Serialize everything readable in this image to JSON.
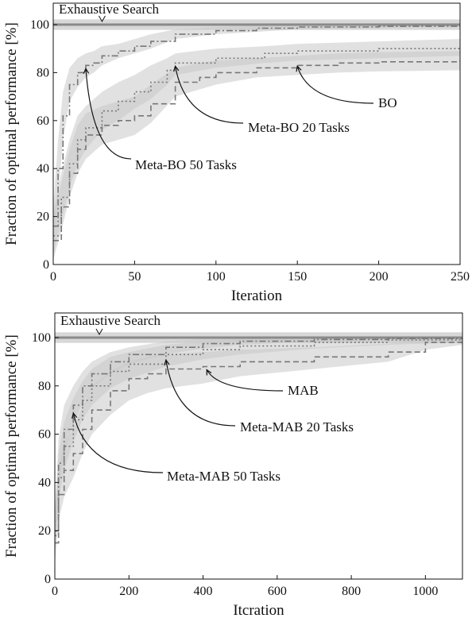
{
  "colors": {
    "exhaustive": "#8a8a8a",
    "band": "#c8c8c8",
    "series_line": "#777777",
    "text": "#111111",
    "axis": "#111111"
  },
  "chart_data": [
    {
      "type": "line",
      "xlabel": "Iteration",
      "ylabel": "Fraction of optimal performance [%]",
      "xlim": [
        0,
        250
      ],
      "ylim": [
        0,
        110
      ],
      "xticks": [
        0,
        50,
        100,
        150,
        200,
        250
      ],
      "yticks": [
        0,
        20,
        40,
        60,
        80,
        100
      ],
      "reference": {
        "name": "Exhaustive Search",
        "value": 100
      },
      "series": [
        {
          "name": "Meta-BO 50 Tasks",
          "dash": "dashdot",
          "x": [
            0,
            3,
            6,
            10,
            15,
            20,
            25,
            30,
            40,
            50,
            60,
            75,
            100,
            125,
            150,
            200,
            250
          ],
          "y": [
            16,
            40,
            62,
            75,
            80,
            83,
            84,
            87,
            89,
            91,
            93,
            96,
            97.5,
            98.5,
            99,
            99.3,
            99.5
          ],
          "lower": [
            8,
            28,
            52,
            68,
            74,
            78,
            80,
            83,
            86,
            88,
            90,
            94,
            96,
            97,
            98,
            98.6,
            99
          ],
          "upper": [
            24,
            52,
            72,
            82,
            86,
            88,
            89,
            91,
            92,
            94,
            96,
            98,
            99,
            99.6,
            99.8,
            100,
            100
          ]
        },
        {
          "name": "Meta-BO 20 Tasks",
          "dash": "dotted",
          "x": [
            0,
            5,
            10,
            15,
            20,
            30,
            40,
            50,
            60,
            70,
            75,
            100,
            130,
            150,
            200,
            250
          ],
          "y": [
            12,
            28,
            42,
            52,
            57,
            64,
            68,
            72,
            76,
            81,
            84,
            86,
            88,
            89,
            90,
            91
          ],
          "lower": [
            4,
            18,
            32,
            42,
            48,
            56,
            60,
            65,
            69,
            75,
            79,
            82,
            84,
            85,
            86,
            87
          ],
          "upper": [
            22,
            38,
            52,
            62,
            66,
            72,
            76,
            79,
            83,
            86,
            88,
            90,
            91,
            92,
            93,
            94
          ]
        },
        {
          "name": "BO",
          "dash": "dashed",
          "x": [
            0,
            5,
            10,
            15,
            20,
            30,
            40,
            50,
            60,
            75,
            90,
            100,
            125,
            150,
            175,
            200,
            250
          ],
          "y": [
            10,
            24,
            38,
            48,
            54,
            58,
            60,
            62,
            67,
            76,
            78,
            80,
            82,
            83,
            84,
            84.5,
            85
          ],
          "lower": [
            2,
            14,
            28,
            38,
            44,
            50,
            52,
            54,
            59,
            70,
            73,
            75,
            78,
            79,
            80,
            80.5,
            81
          ],
          "upper": [
            20,
            34,
            48,
            58,
            63,
            66,
            68,
            70,
            75,
            82,
            84,
            85,
            86,
            87,
            88,
            88.5,
            89
          ]
        }
      ],
      "annotations": [
        {
          "text": "Exhaustive Search",
          "target": [
            30,
            100
          ]
        },
        {
          "text": "BO",
          "target": [
            150,
            84
          ]
        },
        {
          "text": "Meta-BO 20 Tasks",
          "target": [
            75,
            84
          ]
        },
        {
          "text": "Meta-BO 50 Tasks",
          "target": [
            20,
            83
          ]
        }
      ]
    },
    {
      "type": "line",
      "xlabel": "Itcration",
      "ylabel": "Fraction of optimal performance [%]",
      "xlim": [
        0,
        1100
      ],
      "ylim": [
        0,
        110
      ],
      "xticks": [
        0,
        200,
        400,
        600,
        800,
        1000
      ],
      "yticks": [
        0,
        20,
        40,
        60,
        80,
        100
      ],
      "reference": {
        "name": "Exhaustive Search",
        "value": 100
      },
      "series": [
        {
          "name": "Meta-MAB 50 Tasks",
          "dash": "dashdot",
          "x": [
            0,
            10,
            25,
            50,
            75,
            100,
            150,
            200,
            300,
            400,
            500,
            700,
            900,
            1100
          ],
          "y": [
            20,
            48,
            62,
            72,
            80,
            85,
            90,
            93,
            96,
            97.5,
            98.5,
            99.2,
            99.6,
            100
          ],
          "lower": [
            12,
            38,
            52,
            64,
            73,
            79,
            85,
            89,
            93,
            95.5,
            97,
            98.3,
            99,
            99.5
          ],
          "upper": [
            28,
            58,
            72,
            80,
            86,
            90,
            94,
            96,
            98.5,
            99.5,
            100,
            100,
            100,
            100
          ]
        },
        {
          "name": "Meta-MAB 20 Tasks",
          "dash": "dotted",
          "x": [
            0,
            10,
            25,
            50,
            75,
            100,
            150,
            200,
            300,
            400,
            500,
            700,
            900,
            1100
          ],
          "y": [
            18,
            42,
            55,
            66,
            74,
            80,
            86,
            89,
            93,
            95,
            96.5,
            98,
            99,
            99.5
          ],
          "lower": [
            10,
            32,
            45,
            57,
            66,
            72,
            79,
            83,
            88,
            91,
            93,
            95.5,
            97,
            98
          ],
          "upper": [
            26,
            52,
            65,
            75,
            82,
            87,
            92,
            94,
            97,
            98.5,
            99.5,
            100,
            100,
            100
          ]
        },
        {
          "name": "MAB",
          "dash": "dashed",
          "x": [
            0,
            10,
            25,
            50,
            75,
            100,
            150,
            200,
            250,
            300,
            400,
            500,
            700,
            900,
            1000,
            1100
          ],
          "y": [
            15,
            35,
            45,
            52,
            62,
            70,
            78,
            83,
            85,
            87,
            88,
            90,
            92,
            94,
            98,
            99
          ],
          "lower": [
            6,
            24,
            34,
            42,
            52,
            60,
            68,
            74,
            77,
            79,
            81,
            84,
            87,
            90,
            95,
            97
          ],
          "upper": [
            24,
            46,
            56,
            62,
            72,
            80,
            86,
            90,
            92,
            93,
            94,
            95,
            96,
            97.5,
            100,
            100
          ]
        }
      ],
      "annotations": [
        {
          "text": "Exhaustive Search",
          "target": [
            120,
            100
          ]
        },
        {
          "text": "MAB",
          "target": [
            410,
            88
          ]
        },
        {
          "text": "Meta-MAB 20 Tasks",
          "target": [
            300,
            92
          ]
        },
        {
          "text": "Meta-MAB 50 Tasks",
          "target": [
            50,
            70
          ]
        }
      ]
    }
  ]
}
